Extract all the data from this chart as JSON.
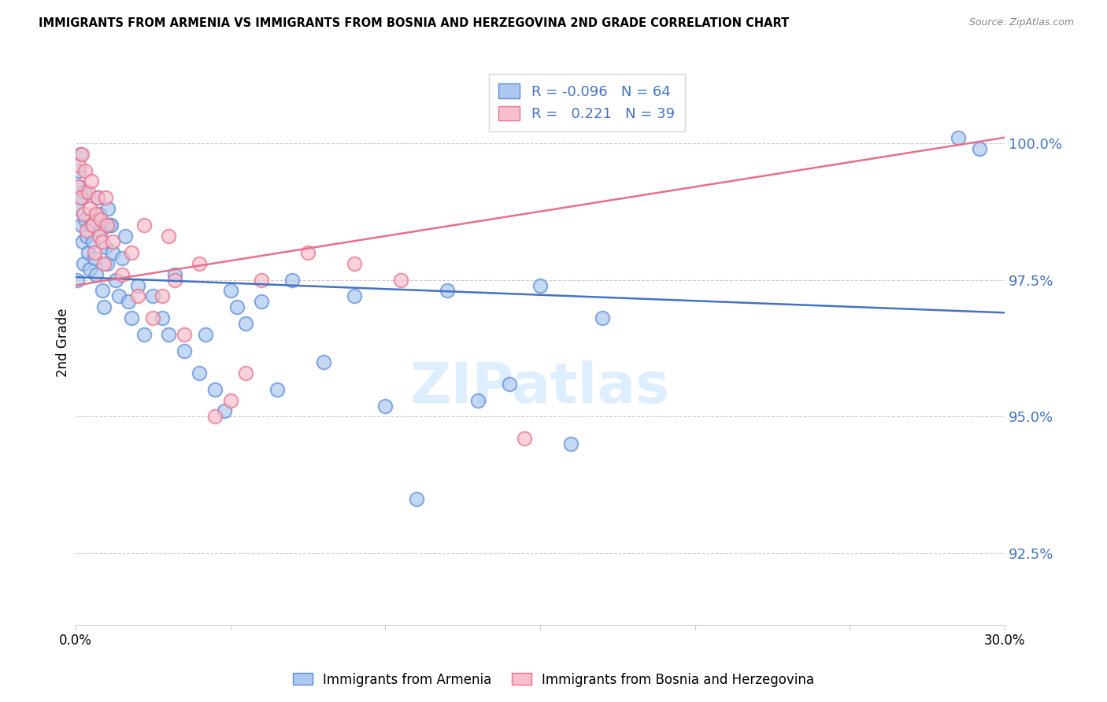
{
  "title": "IMMIGRANTS FROM ARMENIA VS IMMIGRANTS FROM BOSNIA AND HERZEGOVINA 2ND GRADE CORRELATION CHART",
  "source": "Source: ZipAtlas.com",
  "ylabel": "2nd Grade",
  "ytick_values": [
    92.5,
    95.0,
    97.5,
    100.0
  ],
  "xlim": [
    0.0,
    30.0
  ],
  "ylim": [
    91.2,
    101.5
  ],
  "color_armenia_fill": "#adc8f0",
  "color_armenia_edge": "#5b8dd9",
  "color_bosnia_fill": "#f7bfcc",
  "color_bosnia_edge": "#e8708a",
  "color_line_armenia": "#4472c4",
  "color_line_bosnia": "#e8708a",
  "color_ytick": "#4472c4",
  "watermark_color": "#ddeeff",
  "arm_line_x0": 0.0,
  "arm_line_y0": 97.55,
  "arm_line_x1": 30.0,
  "arm_line_y1": 96.9,
  "bos_line_x0": 0.0,
  "bos_line_y0": 97.4,
  "bos_line_x1": 30.0,
  "bos_line_y1": 100.1,
  "armenia_x": [
    0.05,
    0.08,
    0.1,
    0.12,
    0.15,
    0.18,
    0.2,
    0.22,
    0.25,
    0.28,
    0.3,
    0.35,
    0.4,
    0.45,
    0.5,
    0.55,
    0.6,
    0.65,
    0.7,
    0.75,
    0.8,
    0.85,
    0.9,
    0.95,
    1.0,
    1.1,
    1.2,
    1.3,
    1.4,
    1.5,
    1.6,
    1.7,
    1.8,
    2.0,
    2.2,
    2.5,
    2.8,
    3.0,
    3.5,
    4.0,
    4.2,
    4.5,
    5.0,
    5.2,
    5.5,
    6.0,
    6.5,
    7.0,
    8.0,
    9.0,
    10.0,
    11.0,
    12.0,
    13.0,
    14.0,
    15.0,
    16.0,
    17.0,
    1.05,
    1.15,
    3.2,
    4.8,
    28.5,
    29.2
  ],
  "armenia_y": [
    97.5,
    98.8,
    99.5,
    99.2,
    99.8,
    98.5,
    99.0,
    98.2,
    97.8,
    99.1,
    98.6,
    98.3,
    98.0,
    97.7,
    98.5,
    98.2,
    97.9,
    97.6,
    99.0,
    98.7,
    98.4,
    97.3,
    97.0,
    98.1,
    97.8,
    98.5,
    98.0,
    97.5,
    97.2,
    97.9,
    98.3,
    97.1,
    96.8,
    97.4,
    96.5,
    97.2,
    96.8,
    96.5,
    96.2,
    95.8,
    96.5,
    95.5,
    97.3,
    97.0,
    96.7,
    97.1,
    95.5,
    97.5,
    96.0,
    97.2,
    95.2,
    93.5,
    97.3,
    95.3,
    95.6,
    97.4,
    94.5,
    96.8,
    98.8,
    98.5,
    97.6,
    95.1,
    100.1,
    99.9
  ],
  "bosnia_x": [
    0.06,
    0.1,
    0.15,
    0.2,
    0.25,
    0.3,
    0.35,
    0.4,
    0.45,
    0.5,
    0.55,
    0.6,
    0.65,
    0.7,
    0.75,
    0.8,
    0.85,
    0.9,
    1.0,
    1.2,
    1.5,
    1.8,
    2.0,
    2.2,
    2.5,
    2.8,
    3.0,
    3.2,
    3.5,
    4.0,
    4.5,
    5.0,
    5.5,
    6.0,
    7.5,
    9.0,
    10.5,
    14.5,
    0.95
  ],
  "bosnia_y": [
    99.2,
    99.6,
    99.0,
    99.8,
    98.7,
    99.5,
    98.4,
    99.1,
    98.8,
    99.3,
    98.5,
    98.0,
    98.7,
    99.0,
    98.3,
    98.6,
    98.2,
    97.8,
    98.5,
    98.2,
    97.6,
    98.0,
    97.2,
    98.5,
    96.8,
    97.2,
    98.3,
    97.5,
    96.5,
    97.8,
    95.0,
    95.3,
    95.8,
    97.5,
    98.0,
    97.8,
    97.5,
    94.6,
    99.0
  ]
}
